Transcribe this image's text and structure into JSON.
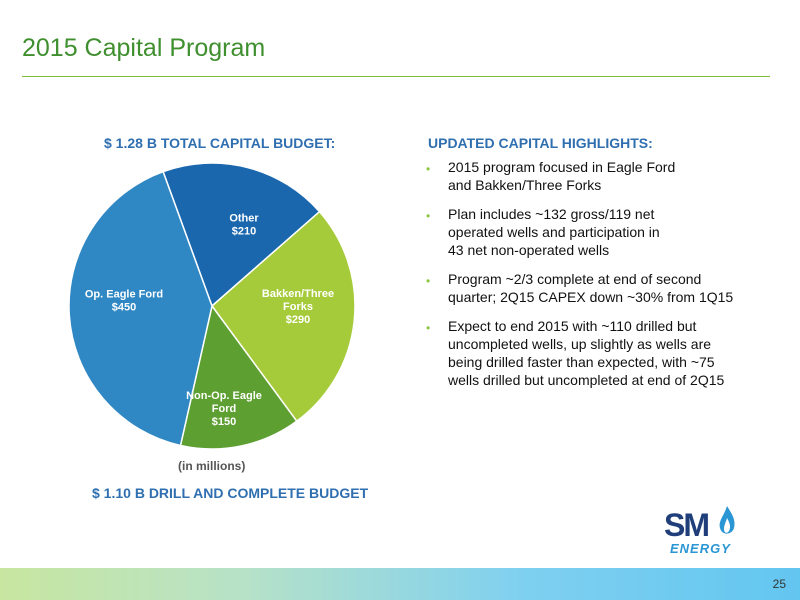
{
  "slide": {
    "title": "2015 Capital Program",
    "page_number": "25"
  },
  "budget": {
    "heading": "$ 1.28 B TOTAL CAPITAL BUDGET:",
    "units_note": "(in millions)",
    "drill_complete": "$ 1.10 B DRILL AND COMPLETE BUDGET"
  },
  "highlights": {
    "heading": "UPDATED CAPITAL HIGHLIGHTS:",
    "bullet_glyph": "•",
    "items": [
      {
        "lines": [
          "2015 program focused in Eagle Ford",
          "and Bakken/Three Forks"
        ]
      },
      {
        "lines": [
          "Plan includes ~132 gross/119 net",
          "operated wells and participation in",
          "43 net non-operated wells"
        ]
      },
      {
        "lines": [
          "Program ~2/3 complete at end of second",
          "quarter; 2Q15 CAPEX down ~30% from 1Q15"
        ]
      },
      {
        "lines": [
          "Expect to end 2015 with ~110 drilled but",
          "uncompleted wells, up slightly as wells are",
          "being drilled faster than expected, with ~75",
          "wells drilled but uncompleted at end of 2Q15"
        ]
      }
    ]
  },
  "logo": {
    "mark": "SM",
    "word": "ENERGY",
    "icon": "flame-icon"
  },
  "colors": {
    "title": "#3f8f2f",
    "heading": "#2f6fb0",
    "bullet": "#8cc63f"
  },
  "chart_data": {
    "type": "pie",
    "title": "$ 1.28 B TOTAL CAPITAL BUDGET:",
    "units": "(in millions)",
    "slices": [
      {
        "label_lines": [
          "Other"
        ],
        "value_label": "$210",
        "value": 210,
        "color": "#1a67ae"
      },
      {
        "label_lines": [
          "Bakken/Three",
          "Forks"
        ],
        "value_label": "$290",
        "value": 290,
        "color": "#a6cb3a"
      },
      {
        "label_lines": [
          "Non-Op. Eagle",
          "Ford"
        ],
        "value_label": "$150",
        "value": 150,
        "color": "#5e9f32"
      },
      {
        "label_lines": [
          "Op. Eagle Ford"
        ],
        "value_label": "$450",
        "value": 450,
        "color": "#2f88c4"
      }
    ]
  }
}
